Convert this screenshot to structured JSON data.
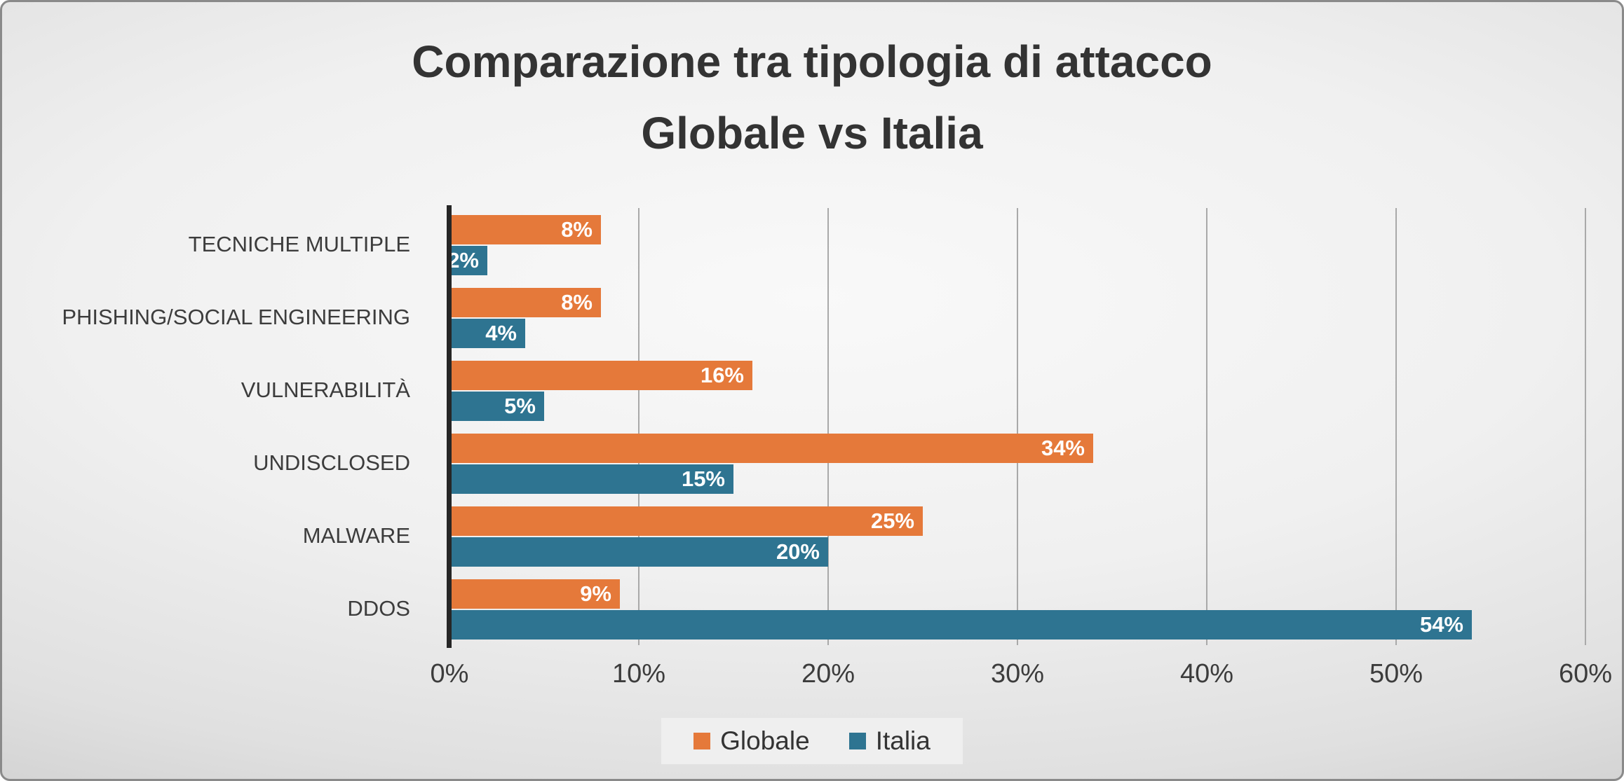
{
  "title": {
    "line1": "Comparazione tra tipologia di attacco",
    "line2": "Globale vs Italia"
  },
  "chart_data": {
    "type": "bar",
    "orientation": "horizontal",
    "title": "Comparazione tra tipologia di attacco Globale vs Italia",
    "categories": [
      "TECNICHE MULTIPLE",
      "PHISHING/SOCIAL ENGINEERING",
      "VULNERABILITÀ",
      "UNDISCLOSED",
      "MALWARE",
      "DDOS"
    ],
    "series": [
      {
        "name": "Globale",
        "color": "#E5793A",
        "values": [
          8,
          8,
          16,
          34,
          25,
          9
        ]
      },
      {
        "name": "Italia",
        "color": "#2E7491",
        "values": [
          2,
          4,
          5,
          15,
          20,
          54
        ]
      }
    ],
    "x_ticks": [
      "0%",
      "10%",
      "20%",
      "30%",
      "40%",
      "50%",
      "60%"
    ],
    "xlim": [
      0,
      60
    ],
    "data_label_format": "{value}%",
    "grid": true,
    "legend_position": "bottom"
  }
}
